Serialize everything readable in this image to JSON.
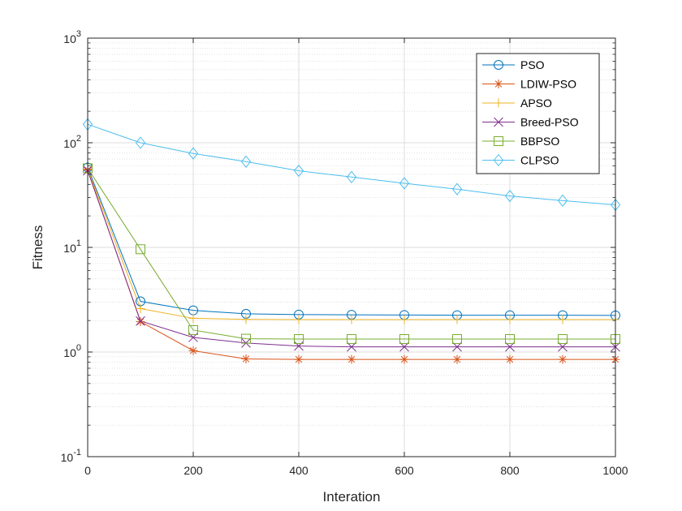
{
  "chart_data": {
    "type": "line",
    "xlabel": "Interation",
    "ylabel": "Fitness",
    "xlim": [
      0,
      1000
    ],
    "ylim": [
      0.1,
      1000
    ],
    "yscale": "log",
    "grid": true,
    "legend_position": "top-right",
    "x_ticks": [
      "0",
      "200",
      "400",
      "600",
      "800",
      "1000"
    ],
    "y_ticks": [
      {
        "base": "10",
        "exp": "-1",
        "value": 0.1
      },
      {
        "base": "10",
        "exp": "0",
        "value": 1
      },
      {
        "base": "10",
        "exp": "1",
        "value": 10
      },
      {
        "base": "10",
        "exp": "2",
        "value": 100
      },
      {
        "base": "10",
        "exp": "3",
        "value": 1000
      }
    ],
    "x": [
      0,
      100,
      200,
      300,
      400,
      500,
      600,
      700,
      800,
      900,
      1000
    ],
    "series": [
      {
        "name": "PSO",
        "color": "#0072BD",
        "marker": "circle",
        "values": [
          58,
          3.05,
          2.5,
          2.32,
          2.28,
          2.27,
          2.26,
          2.25,
          2.25,
          2.25,
          2.24
        ]
      },
      {
        "name": "LDIW-PSO",
        "color": "#D95319",
        "marker": "asterisk",
        "values": [
          55,
          1.95,
          1.03,
          0.86,
          0.85,
          0.85,
          0.85,
          0.85,
          0.85,
          0.85,
          0.85
        ]
      },
      {
        "name": "APSO",
        "color": "#EDB120",
        "marker": "plus",
        "values": [
          56,
          2.6,
          2.1,
          2.05,
          2.04,
          2.04,
          2.04,
          2.04,
          2.04,
          2.04,
          2.04
        ]
      },
      {
        "name": "Breed-PSO",
        "color": "#7E2F8E",
        "marker": "cross",
        "values": [
          54,
          1.98,
          1.38,
          1.22,
          1.14,
          1.12,
          1.12,
          1.12,
          1.12,
          1.12,
          1.12
        ]
      },
      {
        "name": "BBPSO",
        "color": "#77AC30",
        "marker": "square",
        "values": [
          57,
          9.6,
          1.62,
          1.34,
          1.33,
          1.33,
          1.33,
          1.33,
          1.33,
          1.33,
          1.33
        ]
      },
      {
        "name": "CLPSO",
        "color": "#4DBEEE",
        "marker": "diamond",
        "values": [
          150,
          100,
          79,
          66,
          54,
          47,
          41,
          36,
          31,
          28,
          25.5
        ]
      }
    ]
  }
}
